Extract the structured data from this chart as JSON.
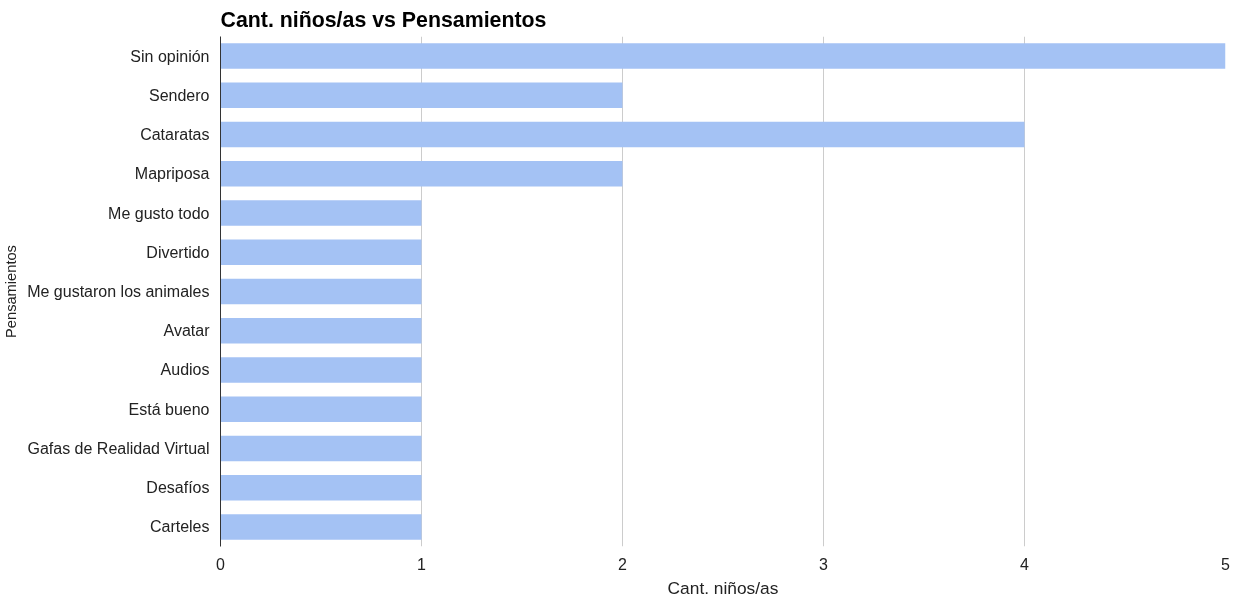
{
  "chart_data": {
    "type": "bar",
    "orientation": "horizontal",
    "title": "Cant. niños/as vs Pensamientos",
    "xlabel": "Cant. niños/as",
    "ylabel": "Pensamientos",
    "categories": [
      "Sin opinión",
      "Sendero",
      "Cataratas",
      "Mapriposa",
      "Me gusto todo",
      "Divertido",
      "Me gustaron los animales",
      "Avatar",
      "Audios",
      "Está bueno",
      "Gafas de Realidad Virtual",
      "Desafíos",
      "Carteles"
    ],
    "values": [
      5,
      2,
      4,
      2,
      1,
      1,
      1,
      1,
      1,
      1,
      1,
      1,
      1
    ],
    "color": "#a4c2f4",
    "xlim": [
      0,
      5
    ],
    "xticks": [
      0,
      1,
      2,
      3,
      4,
      5
    ],
    "grid": "x",
    "legend": false
  }
}
